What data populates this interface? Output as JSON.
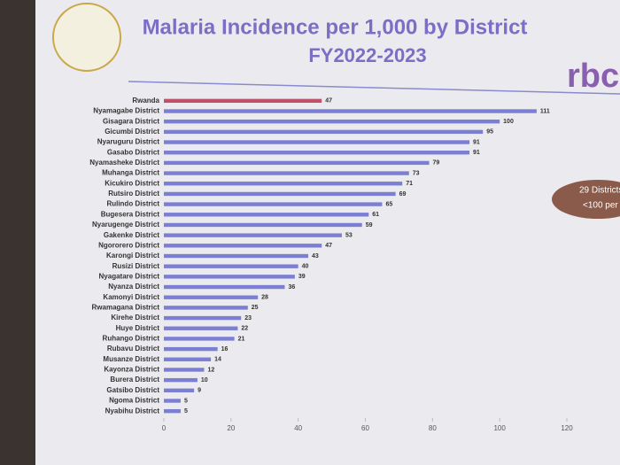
{
  "chart_data": {
    "type": "barh",
    "title": "Malaria Incidence per 1,000 by District",
    "subtitle": "FY2022-2023",
    "logo": "rbc",
    "annotation": [
      "29 Districts",
      "<100 per"
    ],
    "categories": [
      "Rwanda",
      "Nyamagabe District",
      "Gisagara District",
      "Gicumbi District",
      "Nyaruguru District",
      "Gasabo District",
      "Nyamasheke District",
      "Muhanga District",
      "Kicukiro District",
      "Rutsiro District",
      "Rulindo District",
      "Bugesera District",
      "Nyarugenge District",
      "Gakenke District",
      "Ngororero District",
      "Karongi District",
      "Rusizi District",
      "Nyagatare District",
      "Nyanza District",
      "Kamonyi District",
      "Rwamagana District",
      "Kirehe District",
      "Huye District",
      "Ruhango District",
      "Rubavu District",
      "Musanze District",
      "Kayonza District",
      "Burera District",
      "Gatsibo District",
      "Ngoma District",
      "Nyabihu District"
    ],
    "values": [
      47,
      111,
      100,
      95,
      91,
      91,
      79,
      73,
      71,
      69,
      65,
      61,
      59,
      53,
      47,
      43,
      40,
      39,
      36,
      28,
      25,
      23,
      22,
      21,
      16,
      14,
      12,
      10,
      9,
      5,
      5
    ],
    "colors": [
      "#c0506a",
      "#7b7fd4",
      "#7b7fd4",
      "#7b7fd4",
      "#7b7fd4",
      "#7b7fd4",
      "#7b7fd4",
      "#7b7fd4",
      "#7b7fd4",
      "#7b7fd4",
      "#7b7fd4",
      "#7b7fd4",
      "#7b7fd4",
      "#7b7fd4",
      "#7b7fd4",
      "#7b7fd4",
      "#7b7fd4",
      "#7b7fd4",
      "#7b7fd4",
      "#7b7fd4",
      "#7b7fd4",
      "#7b7fd4",
      "#7b7fd4",
      "#7b7fd4",
      "#7b7fd4",
      "#7b7fd4",
      "#7b7fd4",
      "#7b7fd4",
      "#7b7fd4",
      "#7b7fd4",
      "#7b7fd4"
    ],
    "xlim": [
      0,
      120
    ],
    "xticks": [
      0,
      20,
      40,
      60,
      80,
      100,
      120
    ]
  }
}
